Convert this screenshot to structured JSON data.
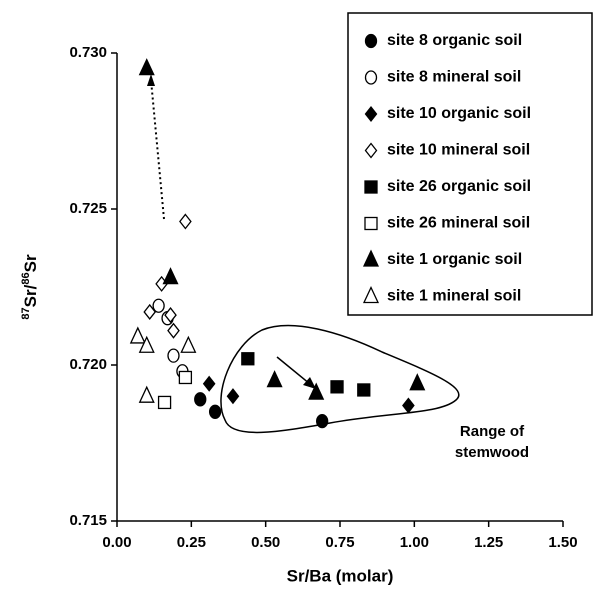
{
  "chart_data": {
    "type": "scatter",
    "x_label": "Sr/Ba (molar)",
    "y_label_parts": [
      "87",
      "Sr/",
      "86",
      "Sr"
    ],
    "xlim": [
      0,
      1.5
    ],
    "xticks": [
      {
        "value": 0,
        "label": "0.00"
      },
      {
        "value": 0.25,
        "label": "0.25"
      },
      {
        "value": 0.5,
        "label": "0.50"
      },
      {
        "value": 0.75,
        "label": "0.75"
      },
      {
        "value": 1,
        "label": "1.00"
      },
      {
        "value": 1.25,
        "label": "1.25"
      },
      {
        "value": 1.5,
        "label": "1.50"
      }
    ],
    "ylim": [
      0.715,
      0.73
    ],
    "yticks": [
      0.715,
      {
        "value": 0.72,
        "label": "0.720"
      },
      0.725,
      {
        "value": 0.73,
        "label": "0.730"
      }
    ],
    "annotations": [
      "Range of",
      "stemwood"
    ],
    "series": [
      {
        "name": "site 8 organic soil",
        "color": "#000000",
        "marker": "circle",
        "filled": true,
        "x": [
          0.28,
          0.33,
          0.69
        ],
        "values": [
          0.7189,
          0.7185,
          0.7182
        ]
      },
      {
        "name": "site 8 mineral soil",
        "color": "#000000",
        "marker": "circle",
        "filled": false,
        "x": [
          0.14,
          0.17,
          0.19,
          0.22
        ],
        "values": [
          0.7219,
          0.7215,
          0.7203,
          0.7198
        ]
      },
      {
        "name": "site 10 organic soil",
        "color": "#000000",
        "marker": "diamond",
        "filled": true,
        "x": [
          0.31,
          0.39,
          0.98
        ],
        "values": [
          0.7194,
          0.719,
          0.7187
        ]
      },
      {
        "name": "site 10 mineral soil",
        "color": "#000000",
        "marker": "diamond",
        "filled": false,
        "x": [
          0.23,
          0.15,
          0.11,
          0.18,
          0.19
        ],
        "values": [
          0.7246,
          0.7226,
          0.7217,
          0.7216,
          0.7211
        ]
      },
      {
        "name": "site 26 organic soil",
        "color": "#000000",
        "marker": "square",
        "filled": true,
        "x": [
          0.44,
          0.74,
          0.83
        ],
        "values": [
          0.7202,
          0.7193,
          0.7192
        ]
      },
      {
        "name": "site 26 mineral soil",
        "color": "#000000",
        "marker": "square",
        "filled": false,
        "x": [
          0.16,
          0.23
        ],
        "values": [
          0.7188,
          0.7196
        ]
      },
      {
        "name": "site 1 organic soil",
        "color": "#000000",
        "marker": "triangle",
        "filled": true,
        "x": [
          0.1,
          0.18,
          0.53,
          0.67,
          1.01
        ],
        "values": [
          0.7295,
          0.7228,
          0.7195,
          0.7191,
          0.7194
        ]
      },
      {
        "name": "site 1 mineral soil",
        "color": "#000000",
        "marker": "triangle",
        "filled": false,
        "x": [
          0.07,
          0.1,
          0.1,
          0.24
        ],
        "values": [
          0.7209,
          0.7206,
          0.719,
          0.7206
        ]
      }
    ]
  }
}
